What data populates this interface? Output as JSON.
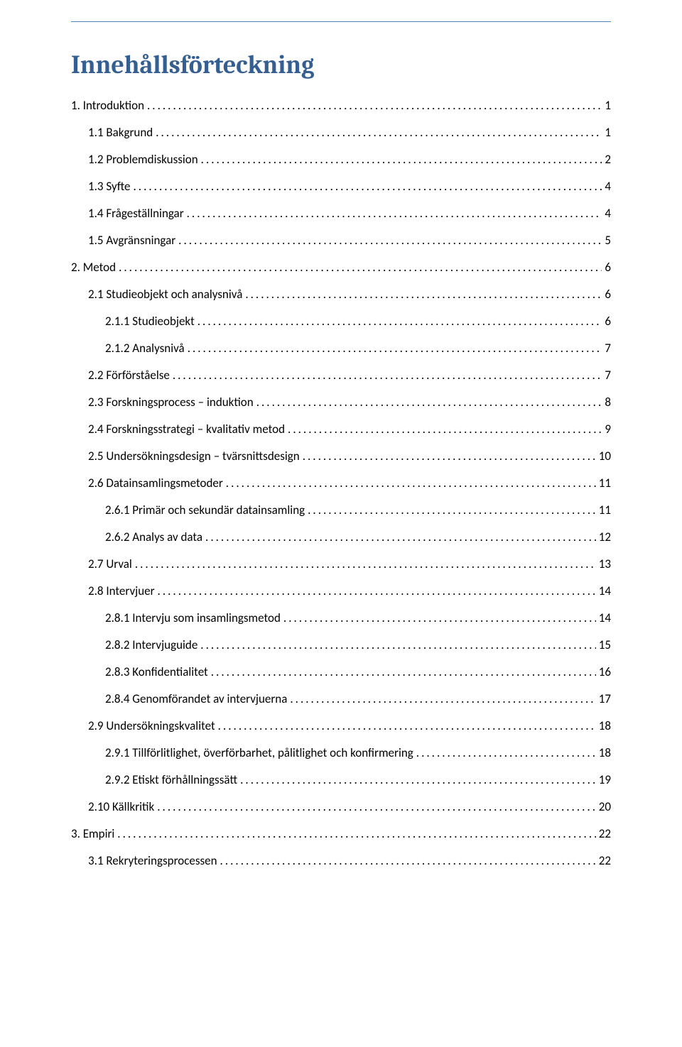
{
  "title": "Innehållsförteckning",
  "colors": {
    "heading": "#365f91",
    "rule": "#4f81bd",
    "text": "#000000",
    "background": "#ffffff"
  },
  "toc": [
    {
      "label": "1. Introduktion",
      "page": "1",
      "level": 0
    },
    {
      "label": "1.1 Bakgrund",
      "page": "1",
      "level": 1
    },
    {
      "label": "1.2 Problemdiskussion",
      "page": "2",
      "level": 1
    },
    {
      "label": "1.3 Syfte",
      "page": "4",
      "level": 1
    },
    {
      "label": "1.4 Frågeställningar",
      "page": "4",
      "level": 1
    },
    {
      "label": "1.5 Avgränsningar",
      "page": "5",
      "level": 1
    },
    {
      "label": "2. Metod",
      "page": "6",
      "level": 0
    },
    {
      "label": "2.1 Studieobjekt och analysnivå",
      "page": "6",
      "level": 1
    },
    {
      "label": "2.1.1 Studieobjekt",
      "page": "6",
      "level": 2
    },
    {
      "label": "2.1.2 Analysnivå",
      "page": "7",
      "level": 2
    },
    {
      "label": "2.2 Förförståelse",
      "page": "7",
      "level": 1
    },
    {
      "label": "2.3 Forskningsprocess – induktion",
      "page": "8",
      "level": 1
    },
    {
      "label": "2.4 Forskningsstrategi – kvalitativ metod",
      "page": "9",
      "level": 1
    },
    {
      "label": "2.5 Undersökningsdesign – tvärsnittsdesign",
      "page": "10",
      "level": 1
    },
    {
      "label": "2.6 Datainsamlingsmetoder",
      "page": "11",
      "level": 1
    },
    {
      "label": "2.6.1 Primär och sekundär datainsamling",
      "page": "11",
      "level": 2
    },
    {
      "label": "2.6.2 Analys av data",
      "page": "12",
      "level": 2
    },
    {
      "label": "2.7 Urval",
      "page": "13",
      "level": 1
    },
    {
      "label": "2.8 Intervjuer",
      "page": "14",
      "level": 1
    },
    {
      "label": "2.8.1 Intervju som insamlingsmetod",
      "page": "14",
      "level": 2
    },
    {
      "label": "2.8.2 Intervjuguide",
      "page": "15",
      "level": 2
    },
    {
      "label": "2.8.3 Konfidentialitet",
      "page": "16",
      "level": 2
    },
    {
      "label": "2.8.4 Genomförandet av intervjuerna",
      "page": "17",
      "level": 2
    },
    {
      "label": "2.9 Undersökningskvalitet",
      "page": "18",
      "level": 1
    },
    {
      "label": "2.9.1 Tillförlitlighet, överförbarhet, pålitlighet och konfirmering",
      "page": "18",
      "level": 2
    },
    {
      "label": "2.9.2 Etiskt förhållningssätt",
      "page": "19",
      "level": 2
    },
    {
      "label": "2.10 Källkritik",
      "page": "20",
      "level": 1
    },
    {
      "label": "3. Empiri",
      "page": "22",
      "level": 0
    },
    {
      "label": "3.1 Rekryteringsprocessen",
      "page": "22",
      "level": 1
    }
  ]
}
